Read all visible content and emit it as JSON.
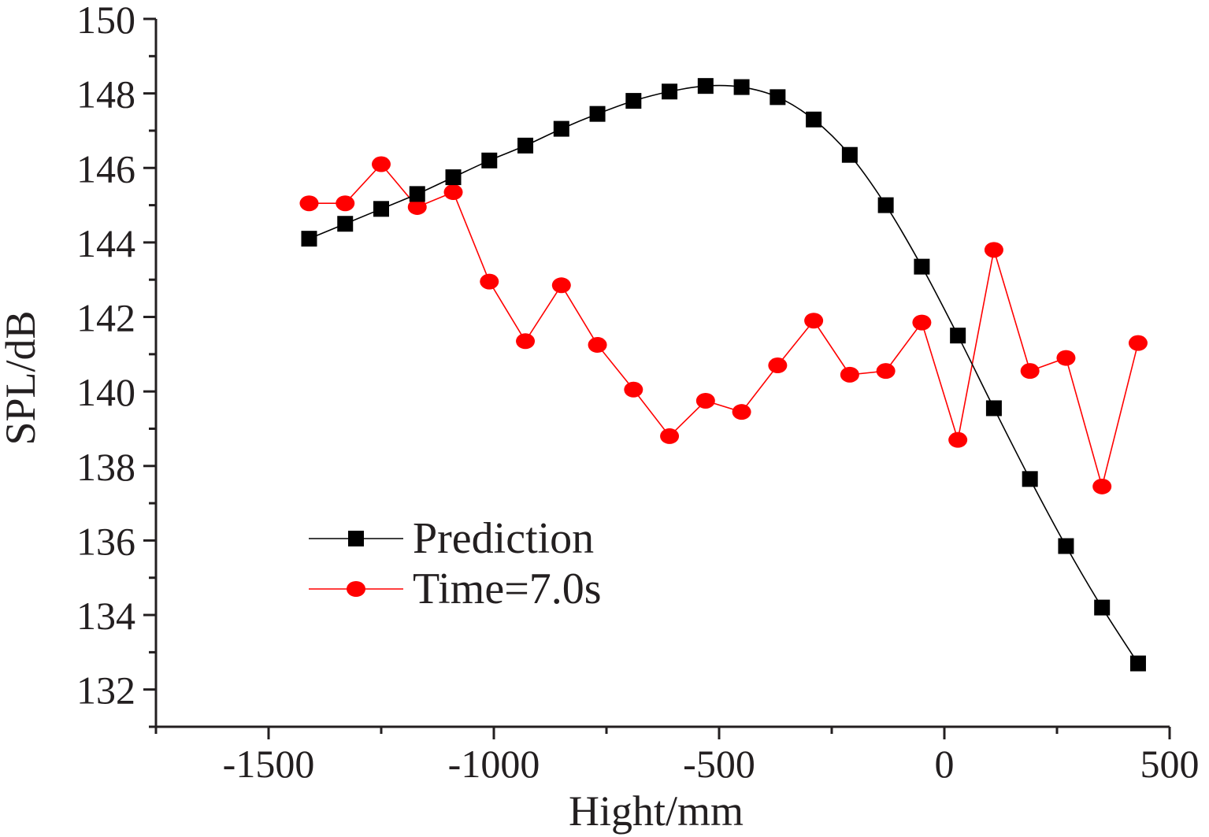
{
  "chart_data": {
    "type": "line",
    "title": "",
    "xlabel": "Hight/mm",
    "ylabel": "SPL/dB",
    "xlim": [
      -1750,
      500
    ],
    "ylim": [
      131,
      150
    ],
    "xticks": [
      -1500,
      -1000,
      -500,
      0,
      500
    ],
    "xtick_labels": [
      "-1500",
      "-1000",
      "-500",
      "0",
      "500"
    ],
    "yticks": [
      132,
      134,
      136,
      138,
      140,
      142,
      144,
      146,
      148,
      150
    ],
    "ytick_labels": [
      "132",
      "134",
      "136",
      "138",
      "140",
      "142",
      "144",
      "146",
      "148",
      "150"
    ],
    "grid": false,
    "legend_position": "lower-left",
    "series": [
      {
        "name": "Prediction",
        "color": "#000000",
        "marker": "square",
        "line": "smooth",
        "x": [
          -1410,
          -1330,
          -1250,
          -1170,
          -1090,
          -1010,
          -930,
          -850,
          -770,
          -690,
          -610,
          -530,
          -450,
          -370,
          -290,
          -210,
          -130,
          -50,
          30,
          110,
          190,
          270,
          350,
          430
        ],
        "y": [
          144.1,
          144.5,
          144.9,
          145.3,
          145.75,
          146.2,
          146.6,
          147.05,
          147.45,
          147.8,
          148.05,
          148.2,
          148.17,
          147.9,
          147.3,
          146.35,
          145.0,
          143.35,
          141.5,
          139.55,
          137.65,
          135.85,
          134.2,
          132.7
        ]
      },
      {
        "name": "Time=7.0s",
        "color": "#ff0000",
        "marker": "circle",
        "line": "straight",
        "x": [
          -1410,
          -1330,
          -1250,
          -1170,
          -1090,
          -1010,
          -930,
          -850,
          -770,
          -690,
          -610,
          -530,
          -450,
          -370,
          -290,
          -210,
          -130,
          -50,
          30,
          110,
          190,
          270,
          350,
          430
        ],
        "y": [
          145.05,
          145.05,
          146.1,
          144.95,
          145.35,
          142.95,
          141.35,
          142.85,
          141.25,
          140.05,
          138.8,
          139.75,
          139.45,
          140.7,
          141.9,
          140.45,
          140.55,
          141.85,
          138.7,
          143.8,
          140.55,
          140.9,
          137.45,
          141.3
        ]
      }
    ]
  }
}
